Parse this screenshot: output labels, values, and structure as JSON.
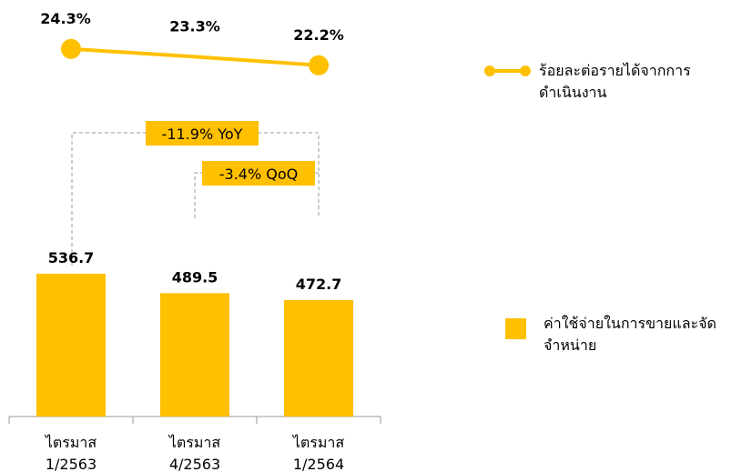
{
  "chart_data": {
    "type": "bar-line",
    "categories": [
      [
        "ไตรมาส",
        "1/2563"
      ],
      [
        "ไตรมาส",
        "4/2563"
      ],
      [
        "ไตรมาส",
        "1/2564"
      ]
    ],
    "ylim": [
      190,
      700
    ],
    "y2lim": [
      14,
      30
    ],
    "series": [
      {
        "name": "ค่าใช้จ่ายในการขายและจัดจำหน่าย",
        "type": "bar",
        "color": "#ffc000",
        "values": [
          536.7,
          489.5,
          472.7
        ]
      },
      {
        "name": "ร้อยละต่อรายได้จากการดำเนินงาน",
        "type": "line",
        "axis": "y2",
        "color": "#ffc000",
        "values": [
          24.3,
          23.3,
          22.2
        ],
        "value_labels": [
          "24.3%",
          "23.3%",
          "22.2%"
        ]
      }
    ],
    "annotations": [
      "-11.9% YoY",
      "-3.4% QoQ"
    ]
  }
}
